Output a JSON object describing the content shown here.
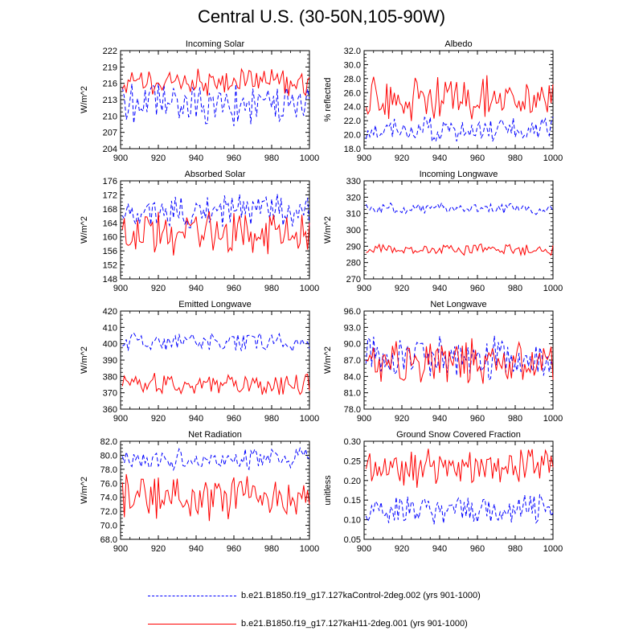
{
  "title": "Central U.S. (30-50N,105-90W)",
  "colors": {
    "control": "#0000ff",
    "experiment": "#ff0000",
    "axis": "#000000"
  },
  "legend": [
    {
      "label": "b.e21.B1850.f19_g17.127kaControl-2deg.002 (yrs 901-1000)",
      "color": "#0000ff",
      "dash": "dashed"
    },
    {
      "label": "b.e21.B1850.f19_g17.127kaH11-2deg.001 (yrs 901-1000)",
      "color": "#ff0000",
      "dash": "solid"
    }
  ],
  "chart_data": [
    {
      "type": "line",
      "title": "Incoming Solar",
      "xlabel": "",
      "ylabel": "W/m^2",
      "xlim": [
        900,
        1000
      ],
      "ylim": [
        204,
        222
      ],
      "xticks": [
        "900",
        "920",
        "940",
        "960",
        "980",
        "1000"
      ],
      "yticks": [
        "204",
        "207",
        "210",
        "213",
        "216",
        "219",
        "222"
      ],
      "series": [
        {
          "name": "control",
          "mean": 212,
          "amp": 3.5,
          "seed": 11
        },
        {
          "name": "experiment",
          "mean": 216.5,
          "amp": 2.2,
          "seed": 12
        }
      ]
    },
    {
      "type": "line",
      "title": "Albedo",
      "xlabel": "",
      "ylabel": "% reflected",
      "xlim": [
        900,
        1000
      ],
      "ylim": [
        18,
        32
      ],
      "xticks": [
        "900",
        "920",
        "940",
        "960",
        "980",
        "1000"
      ],
      "yticks": [
        "18.0",
        "20.0",
        "22.0",
        "24.0",
        "26.0",
        "28.0",
        "30.0",
        "32.0"
      ],
      "series": [
        {
          "name": "control",
          "mean": 20.8,
          "amp": 1.6,
          "seed": 21
        },
        {
          "name": "experiment",
          "mean": 25.3,
          "amp": 2.6,
          "seed": 22
        }
      ]
    },
    {
      "type": "line",
      "title": "Absorbed Solar",
      "xlabel": "",
      "ylabel": "W/m^2",
      "xlim": [
        900,
        1000
      ],
      "ylim": [
        148,
        176
      ],
      "xticks": [
        "900",
        "920",
        "940",
        "960",
        "980",
        "1000"
      ],
      "yticks": [
        "148",
        "152",
        "156",
        "160",
        "164",
        "168",
        "172",
        "176"
      ],
      "series": [
        {
          "name": "control",
          "mean": 167.5,
          "amp": 3.8,
          "seed": 31
        },
        {
          "name": "experiment",
          "mean": 161.5,
          "amp": 5.5,
          "seed": 32
        }
      ]
    },
    {
      "type": "line",
      "title": "Incoming Longwave",
      "xlabel": "",
      "ylabel": "W/m^2",
      "xlim": [
        900,
        1000
      ],
      "ylim": [
        270,
        330
      ],
      "xticks": [
        "900",
        "920",
        "940",
        "960",
        "980",
        "1000"
      ],
      "yticks": [
        "270",
        "280",
        "290",
        "300",
        "310",
        "320",
        "330"
      ],
      "series": [
        {
          "name": "control",
          "mean": 313,
          "amp": 2.8,
          "seed": 41
        },
        {
          "name": "experiment",
          "mean": 288,
          "amp": 2.8,
          "seed": 42
        }
      ]
    },
    {
      "type": "line",
      "title": "Emitted Longwave",
      "xlabel": "",
      "ylabel": "W/m^2",
      "xlim": [
        900,
        1000
      ],
      "ylim": [
        360,
        420
      ],
      "xticks": [
        "900",
        "920",
        "940",
        "960",
        "980",
        "1000"
      ],
      "yticks": [
        "360",
        "370",
        "380",
        "390",
        "400",
        "410",
        "420"
      ],
      "series": [
        {
          "name": "control",
          "mean": 401,
          "amp": 4.5,
          "seed": 51
        },
        {
          "name": "experiment",
          "mean": 375,
          "amp": 5.5,
          "seed": 52
        }
      ]
    },
    {
      "type": "line",
      "title": "Net Longwave",
      "xlabel": "",
      "ylabel": "W/m^2",
      "xlim": [
        900,
        1000
      ],
      "ylim": [
        78,
        96
      ],
      "xticks": [
        "900",
        "920",
        "940",
        "960",
        "980",
        "1000"
      ],
      "yticks": [
        "78.0",
        "81.0",
        "84.0",
        "87.0",
        "90.0",
        "93.0",
        "96.0"
      ],
      "series": [
        {
          "name": "control",
          "mean": 87.5,
          "amp": 3.2,
          "seed": 61
        },
        {
          "name": "experiment",
          "mean": 86.5,
          "amp": 3.4,
          "seed": 62
        }
      ]
    },
    {
      "type": "line",
      "title": "Net Radiation",
      "xlabel": "",
      "ylabel": "W/m^2",
      "xlim": [
        900,
        1000
      ],
      "ylim": [
        68,
        82
      ],
      "xticks": [
        "900",
        "920",
        "940",
        "960",
        "980",
        "1000"
      ],
      "yticks": [
        "68.0",
        "70.0",
        "72.0",
        "74.0",
        "76.0",
        "78.0",
        "80.0",
        "82.0"
      ],
      "series": [
        {
          "name": "control",
          "mean": 79.5,
          "amp": 1.3,
          "seed": 71
        },
        {
          "name": "experiment",
          "mean": 74.3,
          "amp": 2.8,
          "seed": 72
        }
      ]
    },
    {
      "type": "line",
      "title": "Ground Snow Covered Fraction",
      "xlabel": "",
      "ylabel": "unitless",
      "xlim": [
        900,
        1000
      ],
      "ylim": [
        0.05,
        0.3
      ],
      "xticks": [
        "900",
        "920",
        "940",
        "960",
        "980",
        "1000"
      ],
      "yticks": [
        "0.05",
        "0.10",
        "0.15",
        "0.20",
        "0.25",
        "0.30"
      ],
      "series": [
        {
          "name": "control",
          "mean": 0.125,
          "amp": 0.03,
          "seed": 81
        },
        {
          "name": "experiment",
          "mean": 0.235,
          "amp": 0.042,
          "seed": 82
        }
      ]
    }
  ]
}
